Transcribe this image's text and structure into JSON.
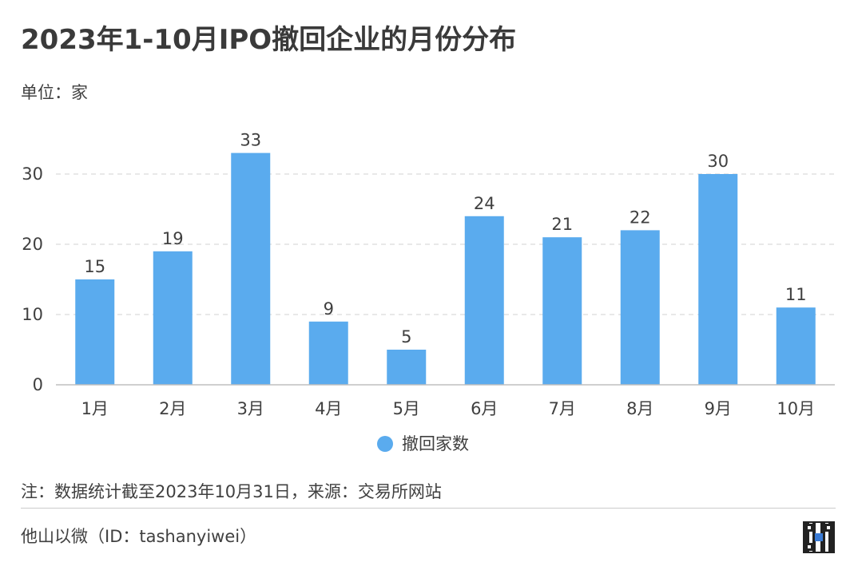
{
  "title": "2023年1-10月IPO撤回企业的月份分布",
  "unit_label": "单位：家",
  "note": "注：数据统计截至2023年10月31日，来源：交易所网站",
  "source": "他山以微（ID：tashanyiwei）",
  "colors": {
    "bar": "#5aabee",
    "grid": "#d9d9d9",
    "axis": "#bfbfbf",
    "text": "#404040"
  },
  "chart_data": {
    "type": "bar",
    "categories": [
      "1月",
      "2月",
      "3月",
      "4月",
      "5月",
      "6月",
      "7月",
      "8月",
      "9月",
      "10月"
    ],
    "series": [
      {
        "name": "撤回家数",
        "values": [
          15,
          19,
          33,
          9,
          5,
          24,
          21,
          22,
          30,
          11
        ]
      }
    ],
    "yticks": [
      "0",
      "10",
      "20",
      "30"
    ],
    "ylim": [
      0,
      35
    ],
    "grid": true,
    "legend_position": "bottom-center",
    "data_labels": true
  }
}
